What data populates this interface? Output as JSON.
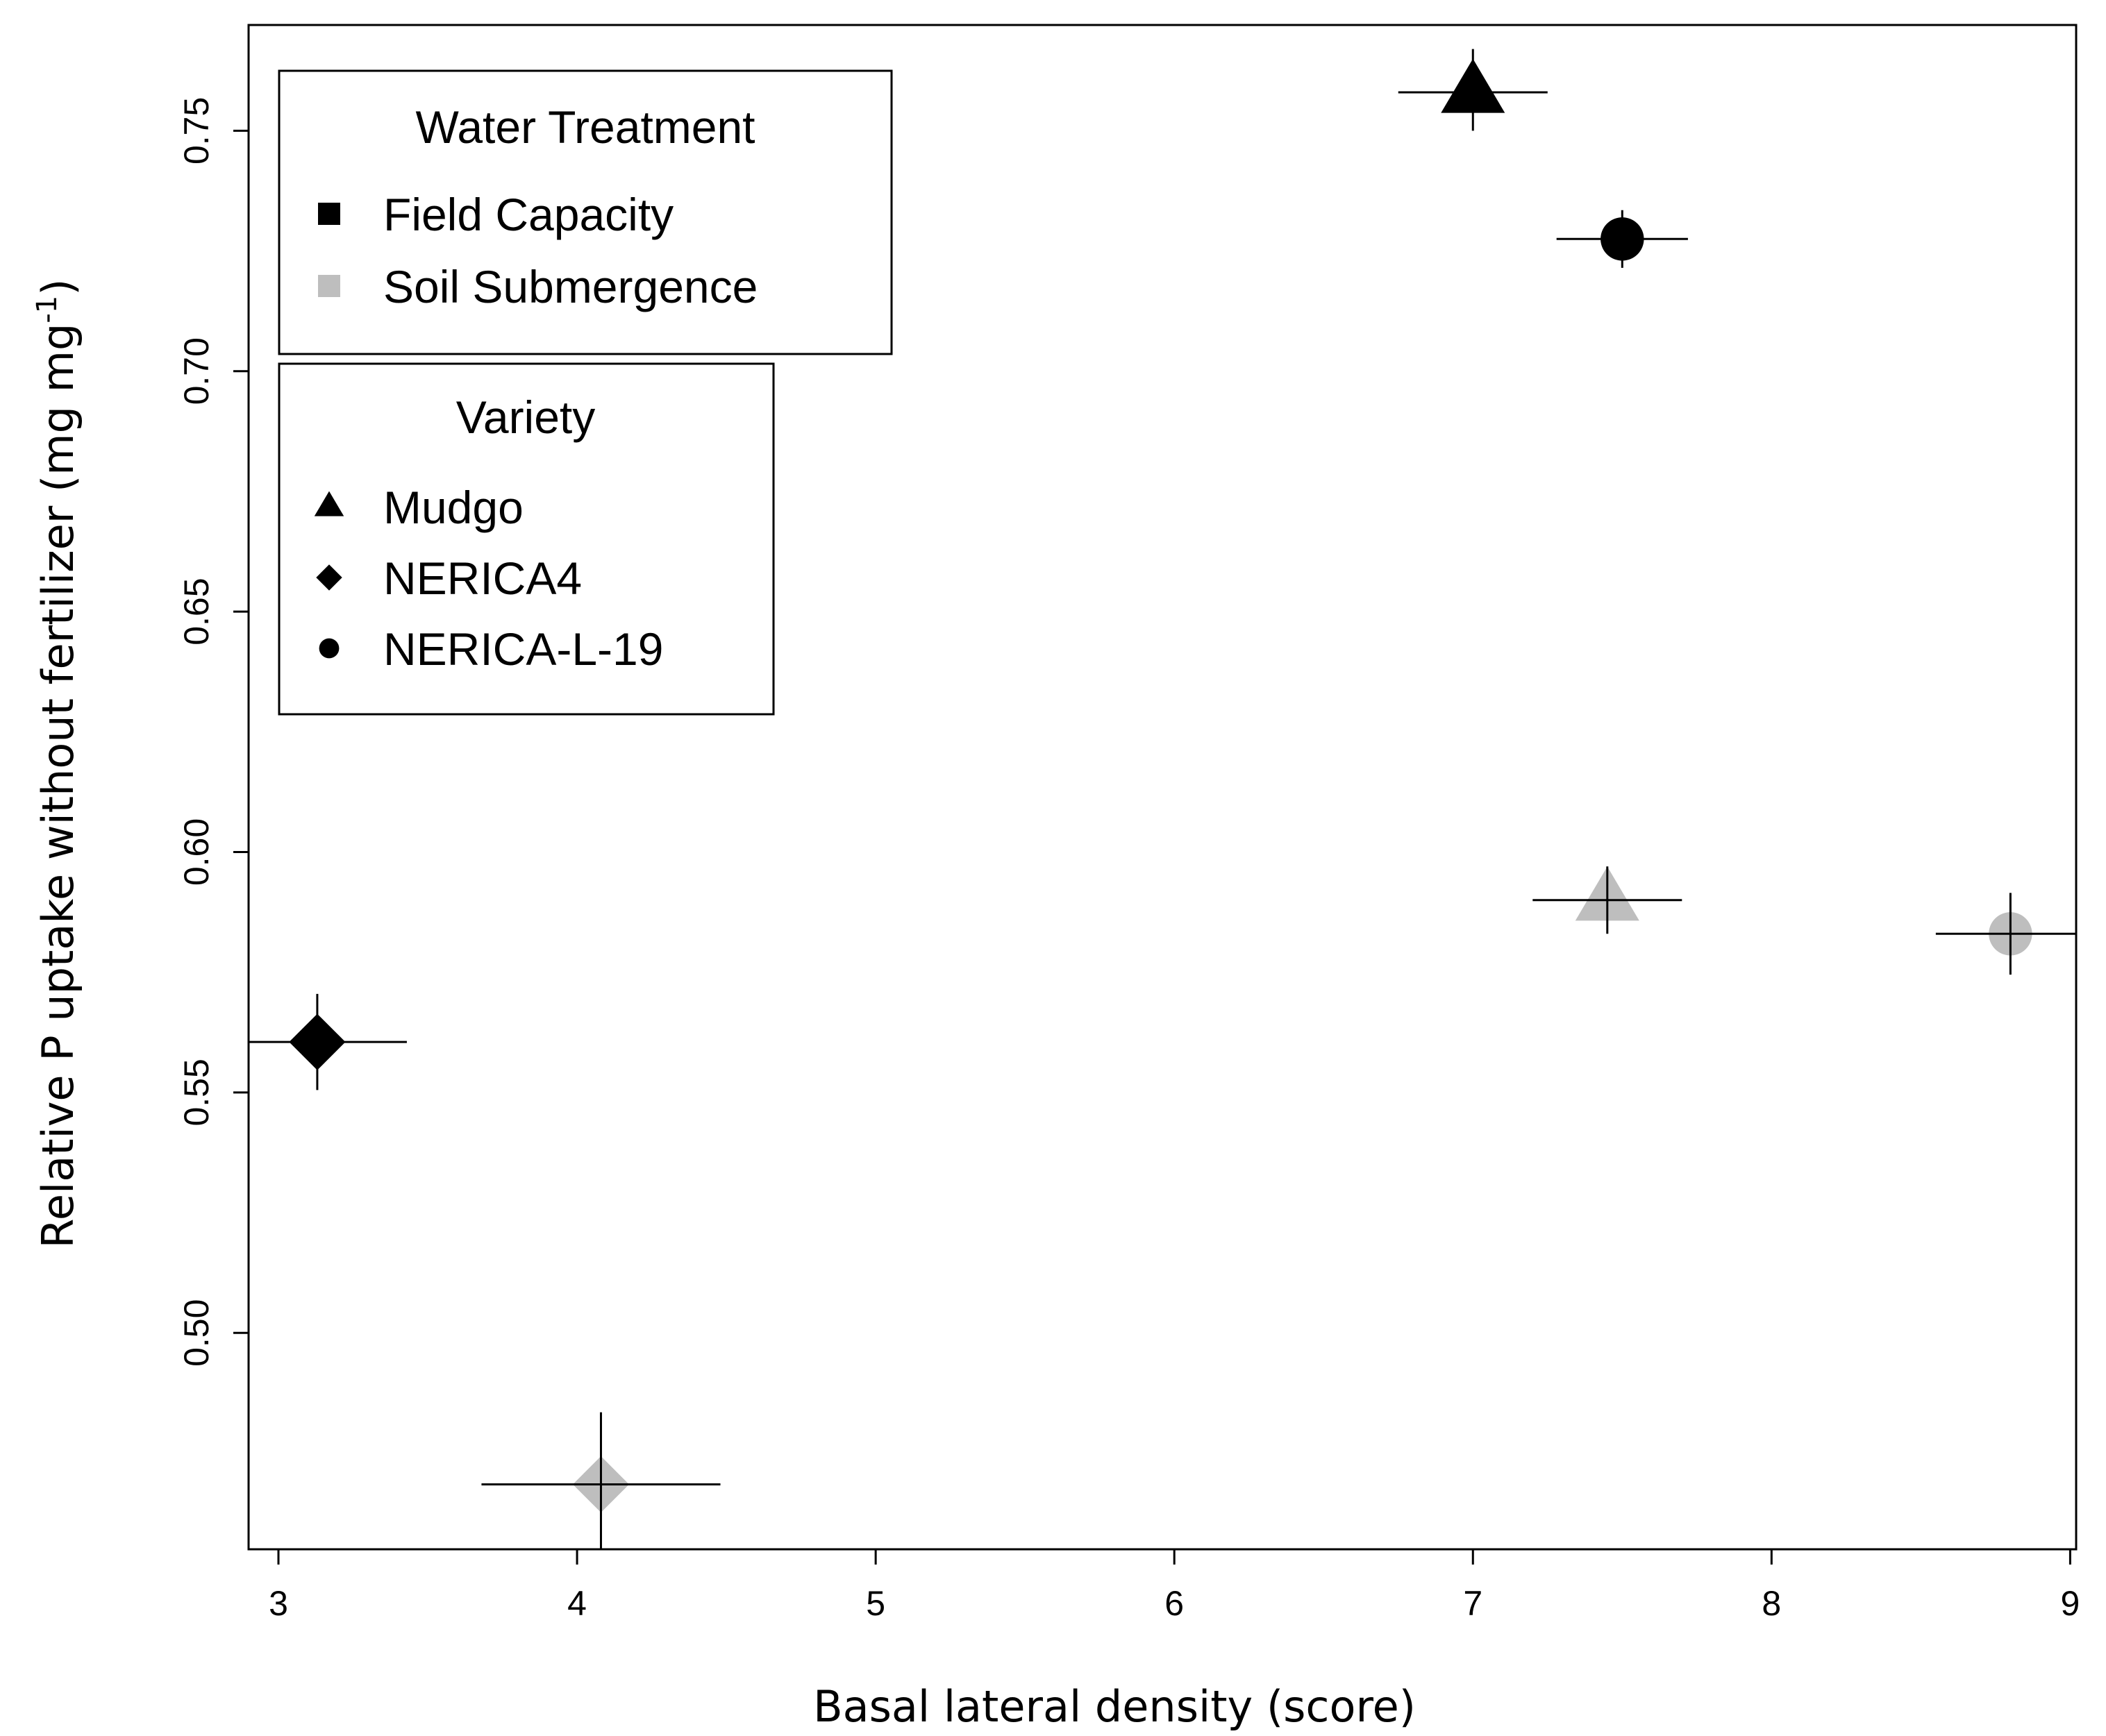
{
  "chart_data": {
    "type": "scatter",
    "title": "",
    "xlabel": "Basal lateral density (score)",
    "ylabel": "Relative P uptake without fertilizer (mg mg",
    "ylabel_sup": "-1",
    "ylabel_close": ")",
    "xlim": [
      2.9,
      9.02
    ],
    "ylim": [
      0.455,
      0.772
    ],
    "xticks": [
      3,
      4,
      5,
      6,
      7,
      8,
      9
    ],
    "yticks": [
      0.5,
      0.55,
      0.6,
      0.65,
      0.7,
      0.75
    ],
    "ytick_labels": [
      "0.50",
      "0.55",
      "0.60",
      "0.65",
      "0.70",
      "0.75"
    ],
    "grid": false,
    "colors": {
      "field_capacity": "#000000",
      "soil_submergence": "#bebebe"
    },
    "points": [
      {
        "variety": "Mudgo",
        "treatment": "Field Capacity",
        "shape": "triangle",
        "x": 7.0,
        "y": 0.758,
        "xerr_low": 6.75,
        "xerr_high": 7.25,
        "yerr_low": 0.75,
        "yerr_high": 0.767
      },
      {
        "variety": "NERICA-L-19",
        "treatment": "Field Capacity",
        "shape": "circle",
        "x": 7.5,
        "y": 0.7275,
        "xerr_low": 7.28,
        "xerr_high": 7.72,
        "yerr_low": 0.7215,
        "yerr_high": 0.7335
      },
      {
        "variety": "NERICA4",
        "treatment": "Field Capacity",
        "shape": "diamond",
        "x": 3.13,
        "y": 0.5605,
        "xerr_low": 2.9,
        "xerr_high": 3.43,
        "yerr_low": 0.5505,
        "yerr_high": 0.5705
      },
      {
        "variety": "Mudgo",
        "treatment": "Soil Submergence",
        "shape": "triangle",
        "x": 7.45,
        "y": 0.59,
        "xerr_low": 7.2,
        "xerr_high": 7.7,
        "yerr_low": 0.583,
        "yerr_high": 0.597
      },
      {
        "variety": "NERICA-L-19",
        "treatment": "Soil Submergence",
        "shape": "circle",
        "x": 8.8,
        "y": 0.583,
        "xerr_low": 8.55,
        "xerr_high": 9.02,
        "yerr_low": 0.5745,
        "yerr_high": 0.5915
      },
      {
        "variety": "NERICA4",
        "treatment": "Soil Submergence",
        "shape": "diamond",
        "x": 4.08,
        "y": 0.4685,
        "xerr_low": 3.68,
        "xerr_high": 4.48,
        "yerr_low": 0.455,
        "yerr_high": 0.4835
      }
    ],
    "legend_treatment": {
      "title": "Water Treatment",
      "entries": [
        {
          "label": "Field Capacity",
          "color": "#000000",
          "shape": "square"
        },
        {
          "label": "Soil Submergence",
          "color": "#bebebe",
          "shape": "square"
        }
      ]
    },
    "legend_variety": {
      "title": "Variety",
      "entries": [
        {
          "label": "Mudgo",
          "shape": "triangle"
        },
        {
          "label": "NERICA4",
          "shape": "diamond"
        },
        {
          "label": "NERICA-L-19",
          "shape": "circle"
        }
      ]
    }
  }
}
